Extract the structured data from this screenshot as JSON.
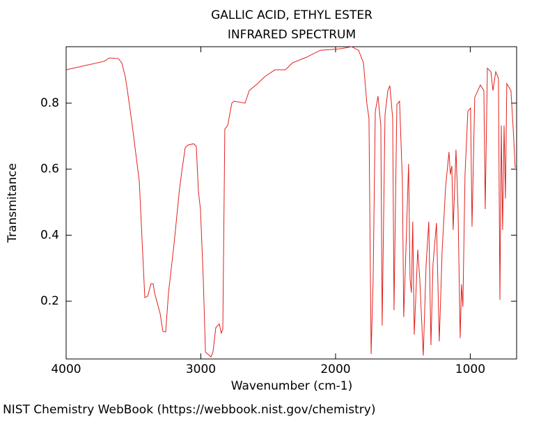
{
  "chart_data": {
    "type": "line",
    "title": "GALLIC ACID, ETHYL ESTER",
    "subtitle": "INFRARED SPECTRUM",
    "x_label": "Wavenumber (cm-1)",
    "y_label": "Transmitance",
    "source": "NIST Chemistry WebBook (https://webbook.nist.gov/chemistry)",
    "color": "#e0201c",
    "xlim": [
      4000,
      656
    ],
    "ylim": [
      0.025,
      0.971
    ],
    "xticks": [
      4000,
      3000,
      2000,
      1000
    ],
    "yticks": [
      0.2,
      0.4,
      0.6,
      0.8
    ],
    "x": [
      4000,
      3716,
      3680,
      3612,
      3587,
      3561,
      3545,
      3509,
      3457,
      3416,
      3395,
      3370,
      3354,
      3344,
      3302,
      3282,
      3261,
      3240,
      3199,
      3158,
      3137,
      3116,
      3096,
      3054,
      3034,
      3018,
      3003,
      2982,
      2966,
      2925,
      2910,
      2889,
      2863,
      2848,
      2837,
      2822,
      2801,
      2770,
      2754,
      2672,
      2641,
      2579,
      2527,
      2450,
      2372,
      2320,
      2217,
      2114,
      1959,
      1881,
      1829,
      1793,
      1767,
      1752,
      1736,
      1721,
      1705,
      1685,
      1664,
      1654,
      1633,
      1612,
      1597,
      1576,
      1566,
      1545,
      1525,
      1504,
      1494,
      1473,
      1458,
      1447,
      1437,
      1427,
      1416,
      1390,
      1375,
      1349,
      1328,
      1308,
      1292,
      1277,
      1251,
      1230,
      1209,
      1183,
      1158,
      1148,
      1137,
      1127,
      1106,
      1091,
      1075,
      1065,
      1055,
      1039,
      1018,
      998,
      987,
      967,
      925,
      899,
      889,
      873,
      847,
      832,
      811,
      791,
      780,
      770,
      760,
      749,
      739,
      729,
      698,
      677,
      667,
      656
    ],
    "values": [
      0.901,
      0.927,
      0.937,
      0.935,
      0.922,
      0.88,
      0.838,
      0.732,
      0.563,
      0.211,
      0.215,
      0.253,
      0.253,
      0.226,
      0.162,
      0.109,
      0.107,
      0.226,
      0.373,
      0.542,
      0.606,
      0.665,
      0.673,
      0.677,
      0.669,
      0.532,
      0.479,
      0.268,
      0.046,
      0.031,
      0.046,
      0.12,
      0.131,
      0.103,
      0.116,
      0.722,
      0.732,
      0.8,
      0.806,
      0.8,
      0.838,
      0.859,
      0.88,
      0.901,
      0.901,
      0.922,
      0.939,
      0.96,
      0.965,
      0.971,
      0.96,
      0.922,
      0.796,
      0.754,
      0.04,
      0.268,
      0.775,
      0.821,
      0.732,
      0.126,
      0.764,
      0.838,
      0.853,
      0.754,
      0.173,
      0.796,
      0.806,
      0.563,
      0.152,
      0.416,
      0.616,
      0.268,
      0.226,
      0.441,
      0.099,
      0.356,
      0.268,
      0.035,
      0.31,
      0.441,
      0.067,
      0.31,
      0.437,
      0.078,
      0.352,
      0.547,
      0.652,
      0.584,
      0.61,
      0.416,
      0.659,
      0.479,
      0.088,
      0.251,
      0.183,
      0.584,
      0.775,
      0.785,
      0.426,
      0.817,
      0.855,
      0.838,
      0.479,
      0.906,
      0.895,
      0.838,
      0.895,
      0.876,
      0.204,
      0.732,
      0.416,
      0.732,
      0.511,
      0.859,
      0.838,
      0.69,
      0.606,
      0.606
    ]
  }
}
